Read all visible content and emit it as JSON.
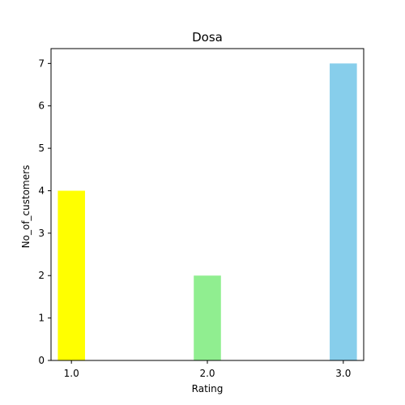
{
  "chart_data": {
    "type": "bar",
    "title": "Dosa",
    "xlabel": "Rating",
    "ylabel": "No_of_customers",
    "x": [
      1.0,
      2.0,
      3.0
    ],
    "x_tick_labels": [
      "1.0",
      "2.0",
      "3.0"
    ],
    "values": [
      4,
      2,
      7
    ],
    "bar_colors": [
      "#ffff00",
      "#90ee90",
      "#87ceeb"
    ],
    "xlim": [
      0.85,
      3.15
    ],
    "ylim": [
      0,
      7.35
    ],
    "y_ticks": [
      0,
      1,
      2,
      3,
      4,
      5,
      6,
      7
    ],
    "grid": false,
    "legend": false
  }
}
